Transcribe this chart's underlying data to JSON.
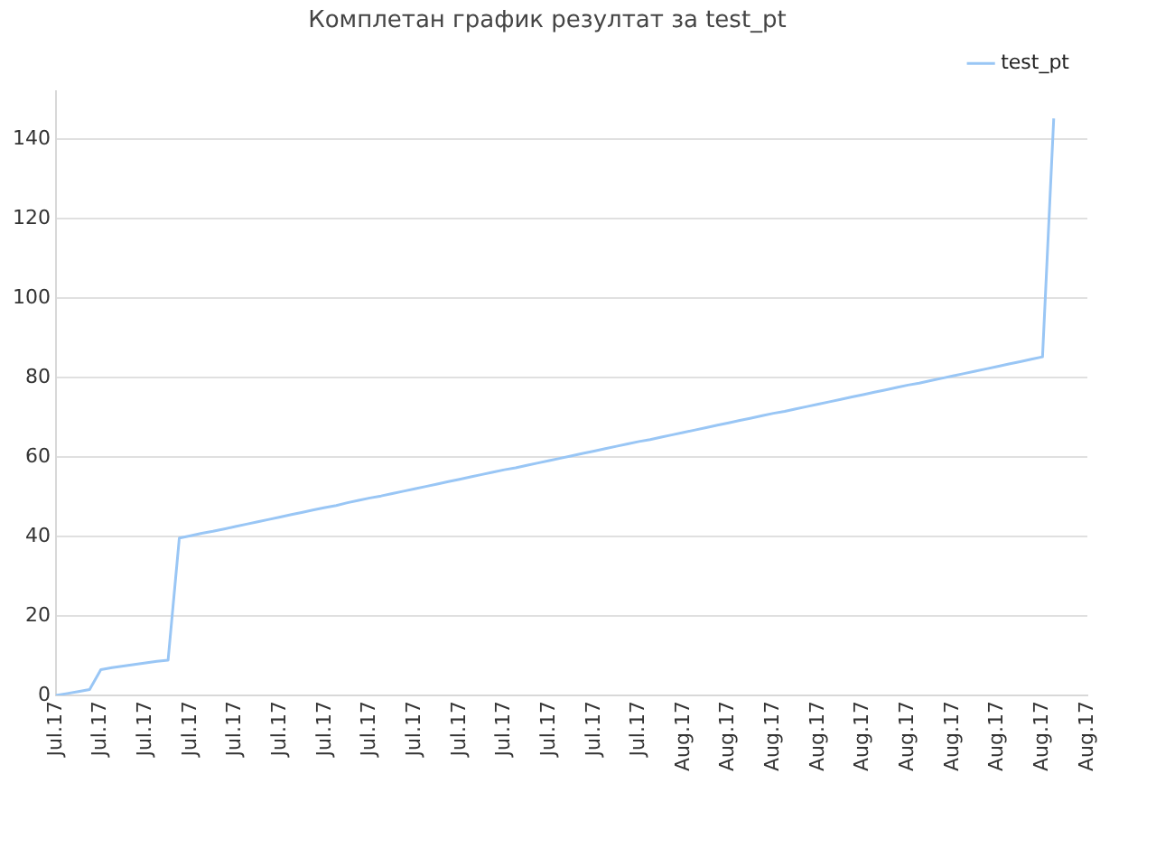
{
  "chart_data": {
    "type": "line",
    "title": "Комплетан график резултат за test_pt",
    "categories": [
      "Jul.17",
      null,
      null,
      null,
      "Jul.17",
      null,
      null,
      null,
      "Jul.17",
      null,
      null,
      null,
      "Jul.17",
      null,
      null,
      null,
      "Jul.17",
      null,
      null,
      null,
      "Jul.17",
      null,
      null,
      null,
      "Jul.17",
      null,
      null,
      null,
      "Jul.17",
      null,
      null,
      null,
      "Jul.17",
      null,
      null,
      null,
      "Jul.17",
      null,
      null,
      null,
      "Jul.17",
      null,
      null,
      null,
      "Jul.17",
      null,
      null,
      null,
      "Jul.17",
      null,
      null,
      null,
      "Jul.17",
      null,
      null,
      null,
      "Aug.17",
      null,
      null,
      null,
      "Aug.17",
      null,
      null,
      null,
      "Aug.17",
      null,
      null,
      null,
      "Aug.17",
      null,
      null,
      null,
      "Aug.17",
      null,
      null,
      null,
      "Aug.17",
      null,
      null,
      null,
      "Aug.17",
      null,
      null,
      null,
      "Aug.17",
      null,
      null,
      null,
      "Aug.17",
      null,
      null,
      null,
      "Aug.17"
    ],
    "series": [
      {
        "name": "test_pt",
        "color": "#99c6f5",
        "values": [
          0,
          0.5,
          1.0,
          1.5,
          6.5,
          7.0,
          7.4,
          7.8,
          8.2,
          8.6,
          8.9,
          39.6,
          40.2,
          40.8,
          41.3,
          41.9,
          42.5,
          43.1,
          43.7,
          44.3,
          44.9,
          45.5,
          46.1,
          46.7,
          47.3,
          47.8,
          48.5,
          49.1,
          49.7,
          50.2,
          50.8,
          51.4,
          52.0,
          52.6,
          53.2,
          53.8,
          54.4,
          55.0,
          55.6,
          56.2,
          56.8,
          57.3,
          57.9,
          58.5,
          59.1,
          59.7,
          60.3,
          60.9,
          61.5,
          62.1,
          62.7,
          63.3,
          63.9,
          64.4,
          65.0,
          65.6,
          66.2,
          66.8,
          67.4,
          68.0,
          68.6,
          69.2,
          69.8,
          70.4,
          71.0,
          71.5,
          72.1,
          72.7,
          73.3,
          73.9,
          74.5,
          75.1,
          75.7,
          76.3,
          76.9,
          77.5,
          78.1,
          78.6,
          79.2,
          79.8,
          80.4,
          81.0,
          81.6,
          82.2,
          82.8,
          83.4,
          84.0,
          84.6,
          85.2,
          145.2,
          null,
          null,
          null
        ]
      }
    ],
    "ylim": [
      0,
      152
    ],
    "yticks": [
      0,
      20,
      40,
      60,
      80,
      100,
      120,
      140
    ],
    "grid": "y",
    "legend": "top right",
    "marker": "none",
    "line_style": "solid"
  }
}
